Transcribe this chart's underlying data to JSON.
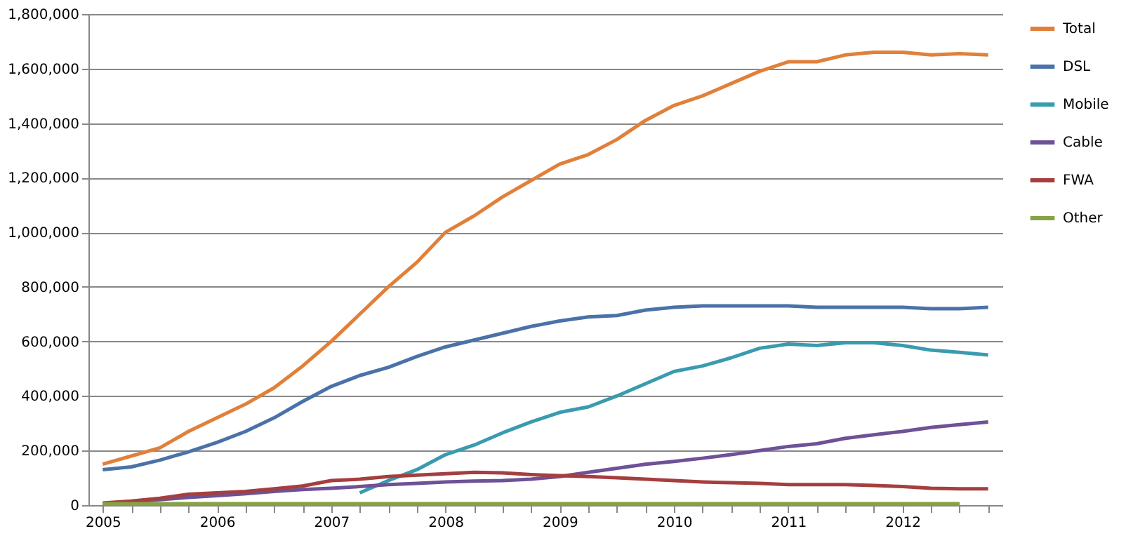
{
  "chart_data": {
    "type": "line",
    "categories": [
      "2005",
      null,
      null,
      null,
      "2006",
      null,
      null,
      null,
      "2007",
      null,
      null,
      null,
      "2008",
      null,
      null,
      null,
      "2009",
      null,
      null,
      null,
      "2010",
      null,
      null,
      null,
      "2011",
      null,
      null,
      null,
      "2012",
      null,
      null,
      null
    ],
    "series": [
      {
        "name": "Total",
        "color": "#e0803a",
        "values": [
          150000,
          180000,
          210000,
          270000,
          320000,
          370000,
          430000,
          510000,
          600000,
          700000,
          800000,
          890000,
          1000000,
          1060000,
          1130000,
          1190000,
          1250000,
          1285000,
          1340000,
          1410000,
          1465000,
          1500000,
          1545000,
          1590000,
          1625000,
          1625000,
          1650000,
          1660000,
          1660000,
          1650000,
          1655000,
          1650000
        ]
      },
      {
        "name": "DSL",
        "color": "#4a72a8",
        "values": [
          130000,
          140000,
          165000,
          195000,
          230000,
          270000,
          320000,
          380000,
          435000,
          475000,
          505000,
          545000,
          580000,
          605000,
          630000,
          655000,
          675000,
          690000,
          695000,
          715000,
          725000,
          730000,
          730000,
          730000,
          730000,
          725000,
          725000,
          725000,
          725000,
          720000,
          720000,
          725000
        ]
      },
      {
        "name": "Mobile",
        "color": "#3a9bb0",
        "values": [
          null,
          null,
          null,
          null,
          null,
          null,
          null,
          null,
          null,
          45000,
          90000,
          130000,
          185000,
          220000,
          265000,
          305000,
          340000,
          360000,
          400000,
          445000,
          490000,
          510000,
          540000,
          575000,
          590000,
          585000,
          595000,
          595000,
          585000,
          568000,
          560000,
          550000
        ]
      },
      {
        "name": "Cable",
        "color": "#6e5196",
        "values": [
          5000,
          12000,
          20000,
          28000,
          35000,
          42000,
          50000,
          57000,
          62000,
          68000,
          75000,
          80000,
          85000,
          88000,
          90000,
          95000,
          105000,
          120000,
          135000,
          150000,
          160000,
          172000,
          185000,
          200000,
          215000,
          225000,
          245000,
          258000,
          270000,
          285000,
          295000,
          305000
        ]
      },
      {
        "name": "FWA",
        "color": "#a53f3f",
        "values": [
          8000,
          15000,
          25000,
          40000,
          45000,
          50000,
          60000,
          70000,
          90000,
          95000,
          105000,
          110000,
          115000,
          120000,
          118000,
          112000,
          108000,
          105000,
          100000,
          95000,
          90000,
          85000,
          82000,
          80000,
          75000,
          75000,
          75000,
          72000,
          68000,
          62000,
          60000,
          60000
        ]
      },
      {
        "name": "Other",
        "color": "#86a244",
        "values": [
          5000,
          5000,
          5000,
          5000,
          5000,
          5000,
          5000,
          5000,
          5000,
          5000,
          5000,
          5000,
          5000,
          5000,
          5000,
          5000,
          5000,
          5000,
          5000,
          5000,
          5000,
          5000,
          5000,
          5000,
          5000,
          5000,
          5000,
          5000,
          5000,
          5000,
          5000,
          null
        ]
      }
    ],
    "ylim": [
      0,
      1800000
    ],
    "yticks": [
      0,
      {
        "value": 200000,
        "label": "200,000"
      },
      {
        "value": 400000,
        "label": "400,000"
      },
      {
        "value": 600000,
        "label": "600,000"
      },
      {
        "value": 800000,
        "label": "800,000"
      },
      {
        "value": 1000000,
        "label": "1,000,000"
      },
      {
        "value": 1200000,
        "label": "1,200,000"
      },
      {
        "value": 1400000,
        "label": "1,400,000"
      },
      {
        "value": 1600000,
        "label": "1,600,000"
      },
      {
        "value": 1800000,
        "label": "1,800,000"
      }
    ],
    "grid": "y",
    "legend": "right"
  }
}
